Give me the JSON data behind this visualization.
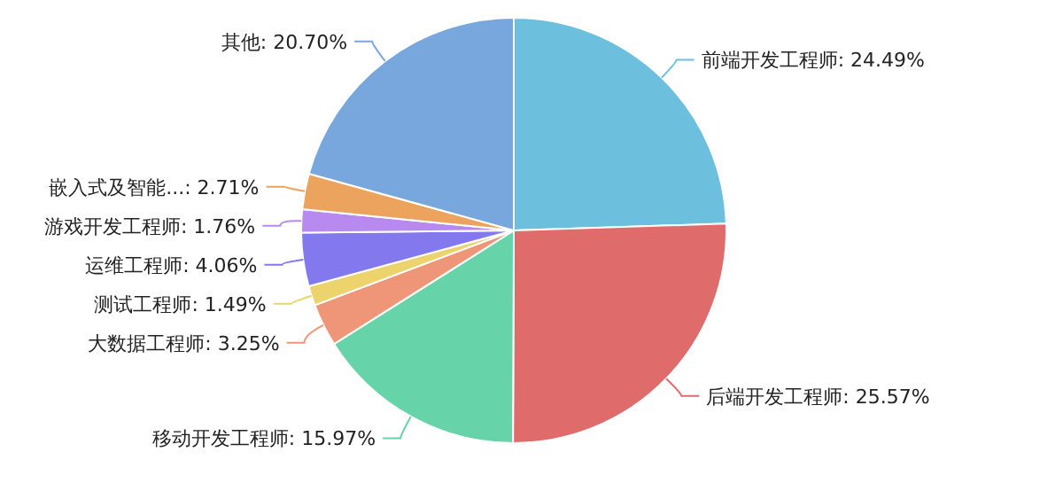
{
  "chart_data": {
    "type": "pie",
    "categories": [
      "前端开发工程师",
      "后端开发工程师",
      "移动开发工程师",
      "大数据工程师",
      "测试工程师",
      "运维工程师",
      "游戏开发工程师",
      "嵌入式及智能...",
      "其他"
    ],
    "values": [
      24.49,
      25.57,
      15.97,
      3.25,
      1.49,
      4.06,
      1.76,
      2.71,
      20.7
    ],
    "value_labels": [
      "24.49%",
      "25.57%",
      "15.97%",
      "3.25%",
      "1.49%",
      "4.06%",
      "1.76%",
      "2.71%",
      "20.70%"
    ],
    "colors": [
      "#6cc0dd",
      "#e06b6b",
      "#66d3a8",
      "#ee9677",
      "#edd36b",
      "#8478ee",
      "#b88af0",
      "#eba35e",
      "#78a7de"
    ]
  }
}
